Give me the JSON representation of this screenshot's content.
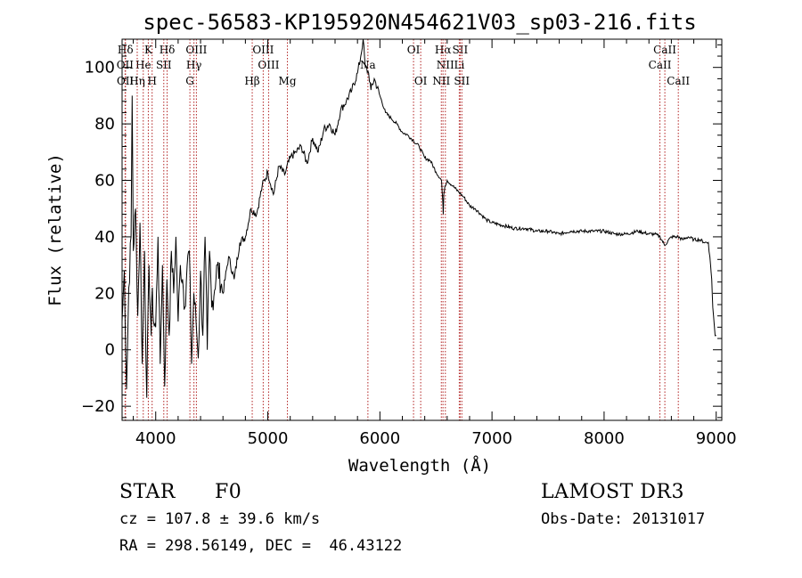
{
  "chart_data": {
    "type": "line",
    "title": "spec-56583-KP195920N454621V03_sp03-216.fits",
    "xlabel": "Wavelength (Å)",
    "ylabel": "Flux (relative)",
    "xlim": [
      3700,
      9050
    ],
    "ylim": [
      -25,
      110
    ],
    "xticks": [
      4000,
      5000,
      6000,
      7000,
      8000,
      9000
    ],
    "yticks": [
      -20,
      0,
      20,
      40,
      60,
      80,
      100
    ],
    "series": [
      {
        "name": "flux",
        "x": [
          3700,
          3720,
          3740,
          3760,
          3780,
          3790,
          3800,
          3820,
          3840,
          3860,
          3880,
          3900,
          3920,
          3940,
          3960,
          3970,
          3980,
          4000,
          4020,
          4040,
          4060,
          4080,
          4100,
          4120,
          4140,
          4160,
          4180,
          4200,
          4220,
          4240,
          4260,
          4280,
          4300,
          4320,
          4340,
          4360,
          4380,
          4400,
          4420,
          4440,
          4460,
          4480,
          4500,
          4550,
          4600,
          4650,
          4700,
          4750,
          4800,
          4850,
          4900,
          4950,
          5000,
          5050,
          5100,
          5150,
          5200,
          5250,
          5300,
          5350,
          5400,
          5450,
          5500,
          5550,
          5600,
          5650,
          5700,
          5750,
          5800,
          5830,
          5850,
          5870,
          5900,
          5920,
          5950,
          6000,
          6050,
          6100,
          6150,
          6200,
          6250,
          6300,
          6350,
          6400,
          6450,
          6500,
          6550,
          6560,
          6565,
          6570,
          6580,
          6600,
          6650,
          6700,
          6750,
          6800,
          6850,
          6900,
          6950,
          7000,
          7100,
          7200,
          7300,
          7400,
          7500,
          7600,
          7700,
          7800,
          7900,
          8000,
          8100,
          8200,
          8300,
          8400,
          8450,
          8500,
          8540,
          8600,
          8650,
          8660,
          8700,
          8750,
          8800,
          8850,
          8900,
          8930,
          8950,
          8960,
          8970,
          8990,
          9000
        ],
        "y": [
          10,
          28,
          -14,
          22,
          40,
          90,
          35,
          50,
          12,
          45,
          -5,
          35,
          -17,
          30,
          5,
          22,
          10,
          8,
          40,
          -5,
          30,
          -13,
          25,
          5,
          35,
          20,
          40,
          10,
          30,
          25,
          15,
          30,
          35,
          -5,
          20,
          10,
          -3,
          28,
          5,
          40,
          0,
          35,
          15,
          30,
          20,
          33,
          25,
          38,
          40,
          50,
          48,
          58,
          63,
          55,
          65,
          62,
          68,
          70,
          72,
          66,
          75,
          70,
          78,
          80,
          76,
          85,
          88,
          92,
          98,
          104,
          110,
          100,
          98,
          92,
          96,
          90,
          84,
          82,
          80,
          77,
          76,
          74,
          72,
          68,
          67,
          63,
          60,
          53,
          48,
          55,
          58,
          60,
          58,
          56,
          54,
          51,
          50,
          48,
          46,
          45,
          44,
          43,
          43,
          42,
          42,
          41,
          42,
          42,
          42,
          42,
          41,
          41,
          42,
          41,
          41,
          40,
          37,
          40,
          40,
          40,
          39,
          40,
          39,
          39,
          38,
          38,
          30,
          25,
          15,
          5,
          5
        ]
      }
    ],
    "spectral_lines": [
      {
        "name": "Hδ",
        "wave": 3730
      },
      {
        "name": "K",
        "wave": 3934
      },
      {
        "name": "Hδ",
        "wave": 4102
      },
      {
        "name": "OIII",
        "wave": 4363
      },
      {
        "name": "OIII",
        "wave": 4959
      },
      {
        "name": "OI",
        "wave": 6300
      },
      {
        "name": "Hα",
        "wave": 6563
      },
      {
        "name": "SII",
        "wave": 6716
      },
      {
        "name": "CaII",
        "wave": 8542
      },
      {
        "name": "OII",
        "wave": 3727
      },
      {
        "name": "He",
        "wave": 3889
      },
      {
        "name": "SII",
        "wave": 4072
      },
      {
        "name": "Hγ",
        "wave": 4341
      },
      {
        "name": "OIII",
        "wave": 5007
      },
      {
        "name": "Na",
        "wave": 5893
      },
      {
        "name": "NII",
        "wave": 6584
      },
      {
        "name": "Li",
        "wave": 6708
      },
      {
        "name": "CaII",
        "wave": 8498
      },
      {
        "name": "OII",
        "wave": 3729
      },
      {
        "name": "Hη",
        "wave": 3835
      },
      {
        "name": "H",
        "wave": 3968
      },
      {
        "name": "G",
        "wave": 4305
      },
      {
        "name": "Hβ",
        "wave": 4861
      },
      {
        "name": "Mg",
        "wave": 5175
      },
      {
        "name": "OI",
        "wave": 6364
      },
      {
        "name": "NII",
        "wave": 6548
      },
      {
        "name": "SII",
        "wave": 6731
      },
      {
        "name": "CaII",
        "wave": 8662
      }
    ]
  },
  "info": {
    "class": "STAR",
    "subclass": "F0",
    "cz": "cz = 107.8 ± 39.6 km/s",
    "coords": "RA = 298.56149, DEC =  46.43122",
    "survey": "LAMOST DR3",
    "obs_date": "Obs-Date: 20131017"
  },
  "colors": {
    "axes": "#000000",
    "spectrum": "#000000",
    "line_marker": "#b22222"
  }
}
